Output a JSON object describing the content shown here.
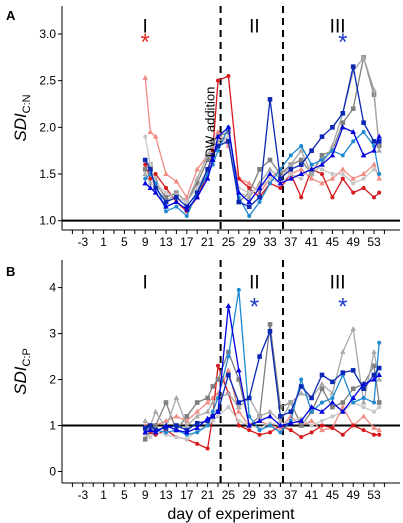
{
  "colors": {
    "axis": "#000000",
    "red": "#d7191c",
    "blue": "#1b2fd6",
    "star_red": "#e8251d",
    "star_blue": "#2038c8"
  },
  "chart_data": [
    {
      "panel_letter": "A",
      "type": "line",
      "ylabel": "SDI",
      "ylabel_subscript": "C:N",
      "yticks": [
        "1.0",
        "1.5",
        "2.0",
        "2.5",
        "3.0"
      ],
      "ytick_values": [
        1.0,
        1.5,
        2.0,
        2.5,
        3.0
      ],
      "ylim": [
        0.9,
        3.3
      ],
      "xlim": [
        -7,
        58
      ],
      "xticks": [
        "-3",
        "1",
        "5",
        "9",
        "13",
        "17",
        "21",
        "25",
        "29",
        "33",
        "37",
        "41",
        "45",
        "49",
        "53"
      ],
      "xtick_values": [
        -3,
        1,
        5,
        9,
        13,
        17,
        21,
        25,
        29,
        33,
        37,
        41,
        45,
        49,
        53
      ],
      "reference_line": 1.0,
      "dashed_lines_x": [
        23.5,
        35.5
      ],
      "phase_labels": [
        {
          "text": "I",
          "x": 9,
          "y": 3.1
        },
        {
          "text": "II",
          "x": 30,
          "y": 3.1
        },
        {
          "text": "III",
          "x": 46,
          "y": 3.1
        }
      ],
      "stars": [
        {
          "text": "*",
          "x": 9,
          "y": 2.98,
          "color": "#e8251d"
        },
        {
          "text": "*",
          "x": 47,
          "y": 2.98,
          "color": "#2038c8"
        }
      ],
      "annotation": {
        "text": "DW addition",
        "x": 22.3,
        "y": 2.55
      },
      "x": [
        9,
        10,
        11,
        13,
        15,
        17,
        19,
        21,
        22,
        23,
        25,
        27,
        29,
        31,
        33,
        35,
        37,
        39,
        41,
        43,
        45,
        47,
        49,
        51,
        53,
        54
      ],
      "series": [
        {
          "color": "#f08c84",
          "marker": "triangle",
          "values": [
            2.53,
            1.95,
            1.9,
            1.5,
            1.42,
            1.25,
            1.55,
            1.7,
            1.8,
            1.95,
            1.8,
            1.45,
            1.4,
            1.3,
            1.45,
            1.55,
            1.5,
            1.55,
            1.45,
            1.4,
            1.45,
            1.55,
            1.45,
            1.5,
            1.6,
            1.45
          ]
        },
        {
          "color": "#d7191c",
          "marker": "circle",
          "values": [
            1.6,
            1.45,
            1.5,
            1.35,
            1.2,
            1.1,
            1.25,
            1.5,
            1.75,
            2.5,
            2.55,
            1.45,
            1.35,
            1.25,
            1.4,
            1.35,
            1.5,
            1.25,
            1.55,
            1.5,
            1.25,
            1.45,
            1.3,
            1.35,
            1.25,
            1.3
          ]
        },
        {
          "color": "#7f7f7f",
          "marker": "square",
          "values": [
            1.55,
            1.6,
            1.4,
            1.25,
            1.3,
            1.2,
            1.4,
            1.65,
            1.85,
            1.9,
            1.95,
            1.2,
            1.3,
            1.55,
            1.65,
            1.5,
            1.6,
            1.65,
            1.5,
            1.7,
            1.75,
            2.05,
            2.2,
            2.75,
            2.35,
            1.8
          ]
        },
        {
          "color": "#a9a9a9",
          "marker": "triangle",
          "values": [
            1.5,
            1.4,
            1.45,
            1.2,
            1.3,
            1.2,
            1.45,
            1.7,
            1.8,
            1.85,
            1.9,
            1.3,
            1.25,
            1.4,
            1.55,
            1.45,
            1.6,
            1.75,
            1.5,
            1.6,
            1.8,
            2.15,
            2.6,
            2.75,
            2.4,
            1.75
          ]
        },
        {
          "color": "#c6c6c6",
          "marker": "circle",
          "values": [
            1.9,
            1.6,
            1.4,
            1.3,
            1.25,
            1.2,
            1.35,
            1.55,
            1.7,
            1.8,
            1.9,
            1.35,
            1.3,
            1.35,
            1.45,
            1.4,
            1.5,
            1.45,
            1.6,
            1.55,
            1.5,
            1.5,
            1.4,
            1.45,
            1.55,
            1.5
          ]
        },
        {
          "color": "#1f8ad1",
          "marker": "circle",
          "values": [
            1.45,
            1.5,
            1.4,
            1.1,
            1.15,
            1.05,
            1.3,
            1.5,
            1.6,
            1.75,
            2.0,
            1.25,
            1.05,
            1.2,
            1.4,
            1.55,
            1.7,
            1.8,
            1.6,
            1.65,
            1.75,
            1.7,
            1.85,
            1.95,
            1.8,
            1.5
          ]
        },
        {
          "color": "#0a28b4",
          "marker": "square",
          "values": [
            1.65,
            1.55,
            1.35,
            1.2,
            1.25,
            1.15,
            1.3,
            1.55,
            1.7,
            1.8,
            1.85,
            1.2,
            1.15,
            1.25,
            2.3,
            1.45,
            1.55,
            1.6,
            1.75,
            1.9,
            2.0,
            2.15,
            2.65,
            2.05,
            1.85,
            1.85
          ]
        },
        {
          "color": "#0000e0",
          "marker": "triangle",
          "values": [
            1.4,
            1.35,
            1.3,
            1.15,
            1.2,
            1.12,
            1.25,
            1.45,
            1.65,
            1.9,
            2.0,
            1.3,
            1.2,
            1.35,
            1.5,
            1.4,
            1.45,
            1.5,
            1.55,
            1.6,
            1.7,
            2.0,
            1.95,
            1.7,
            1.75,
            1.9
          ]
        }
      ]
    },
    {
      "panel_letter": "B",
      "type": "line",
      "ylabel": "SDI",
      "ylabel_subscript": "C:P",
      "xlabel": "day of experiment",
      "yticks": [
        "0",
        "1",
        "2",
        "3",
        "4"
      ],
      "ytick_values": [
        0,
        1,
        2,
        3,
        4
      ],
      "ylim": [
        -0.25,
        4.6
      ],
      "xlim": [
        -7,
        58
      ],
      "xticks": [
        "-3",
        "1",
        "5",
        "9",
        "13",
        "17",
        "21",
        "25",
        "29",
        "33",
        "37",
        "41",
        "45",
        "49",
        "53"
      ],
      "xtick_values": [
        -3,
        1,
        5,
        9,
        13,
        17,
        21,
        25,
        29,
        33,
        37,
        41,
        45,
        49,
        53
      ],
      "reference_line": 1.0,
      "dashed_lines_x": [
        23.5,
        35.5
      ],
      "phase_labels": [
        {
          "text": "I",
          "x": 9,
          "y": 4.15
        },
        {
          "text": "II",
          "x": 30,
          "y": 4.15
        },
        {
          "text": "III",
          "x": 46,
          "y": 4.15
        }
      ],
      "stars": [
        {
          "text": "*",
          "x": 30,
          "y": 3.72,
          "color": "#2038c8"
        },
        {
          "text": "*",
          "x": 47,
          "y": 3.72,
          "color": "#2038c8"
        }
      ],
      "x": [
        9,
        10,
        11,
        13,
        15,
        17,
        19,
        21,
        22,
        23,
        25,
        27,
        29,
        31,
        33,
        35,
        37,
        39,
        41,
        43,
        45,
        47,
        49,
        51,
        53,
        54
      ],
      "series": [
        {
          "color": "#f08c84",
          "marker": "triangle",
          "values": [
            1.0,
            0.9,
            1.0,
            1.1,
            1.2,
            1.1,
            1.3,
            1.5,
            1.6,
            1.7,
            2.2,
            1.3,
            1.0,
            1.1,
            1.0,
            0.95,
            1.2,
            1.0,
            1.1,
            0.9,
            0.95,
            1.4,
            1.0,
            1.2,
            0.95,
            0.9
          ]
        },
        {
          "color": "#d7191c",
          "marker": "circle",
          "values": [
            0.9,
            0.85,
            0.8,
            0.9,
            0.75,
            0.7,
            0.6,
            0.5,
            1.2,
            2.3,
            1.7,
            1.0,
            0.9,
            0.8,
            0.85,
            1.0,
            0.9,
            0.75,
            0.85,
            1.0,
            0.95,
            0.8,
            1.0,
            0.9,
            0.8,
            0.8
          ]
        },
        {
          "color": "#7f7f7f",
          "marker": "square",
          "values": [
            0.7,
            0.9,
            1.0,
            1.5,
            0.9,
            1.2,
            1.5,
            1.6,
            1.85,
            2.0,
            2.6,
            2.0,
            1.0,
            1.2,
            3.2,
            1.4,
            1.5,
            1.0,
            1.3,
            1.8,
            1.4,
            1.5,
            1.8,
            1.9,
            2.3,
            1.5
          ]
        },
        {
          "color": "#a9a9a9",
          "marker": "triangle",
          "values": [
            1.1,
            1.0,
            1.3,
            0.95,
            1.6,
            1.0,
            1.2,
            1.3,
            1.5,
            1.6,
            1.7,
            1.4,
            1.6,
            1.2,
            1.3,
            1.1,
            1.5,
            1.7,
            1.6,
            1.9,
            1.7,
            2.6,
            3.1,
            1.5,
            2.6,
            2.0
          ]
        },
        {
          "color": "#c6c6c6",
          "marker": "circle",
          "values": [
            0.8,
            0.75,
            0.85,
            0.8,
            0.75,
            0.7,
            0.9,
            1.0,
            1.1,
            1.2,
            1.4,
            1.1,
            1.0,
            0.95,
            1.05,
            1.0,
            1.1,
            1.15,
            1.0,
            1.1,
            1.2,
            1.3,
            1.5,
            1.4,
            1.3,
            1.4
          ]
        },
        {
          "color": "#1f8ad1",
          "marker": "circle",
          "values": [
            0.9,
            1.0,
            0.9,
            0.85,
            0.9,
            0.8,
            0.85,
            1.0,
            1.3,
            1.6,
            2.5,
            3.95,
            1.2,
            0.9,
            1.0,
            0.85,
            1.1,
            2.0,
            1.3,
            1.5,
            1.6,
            2.1,
            1.5,
            1.6,
            1.5,
            2.8
          ]
        },
        {
          "color": "#0a28b4",
          "marker": "square",
          "values": [
            0.95,
            1.0,
            0.9,
            0.95,
            1.0,
            0.9,
            1.05,
            1.1,
            1.2,
            1.3,
            2.1,
            1.5,
            1.6,
            2.5,
            3.05,
            1.2,
            1.3,
            1.85,
            1.6,
            2.1,
            1.95,
            2.15,
            2.2,
            1.8,
            2.1,
            2.25
          ]
        },
        {
          "color": "#0000e0",
          "marker": "triangle",
          "values": [
            0.85,
            0.9,
            0.85,
            1.0,
            0.9,
            0.85,
            0.95,
            1.15,
            1.2,
            1.3,
            3.6,
            2.2,
            1.0,
            1.1,
            1.2,
            1.0,
            1.05,
            1.1,
            1.4,
            1.3,
            1.5,
            1.3,
            1.6,
            1.9,
            2.0,
            2.1
          ]
        }
      ]
    }
  ]
}
